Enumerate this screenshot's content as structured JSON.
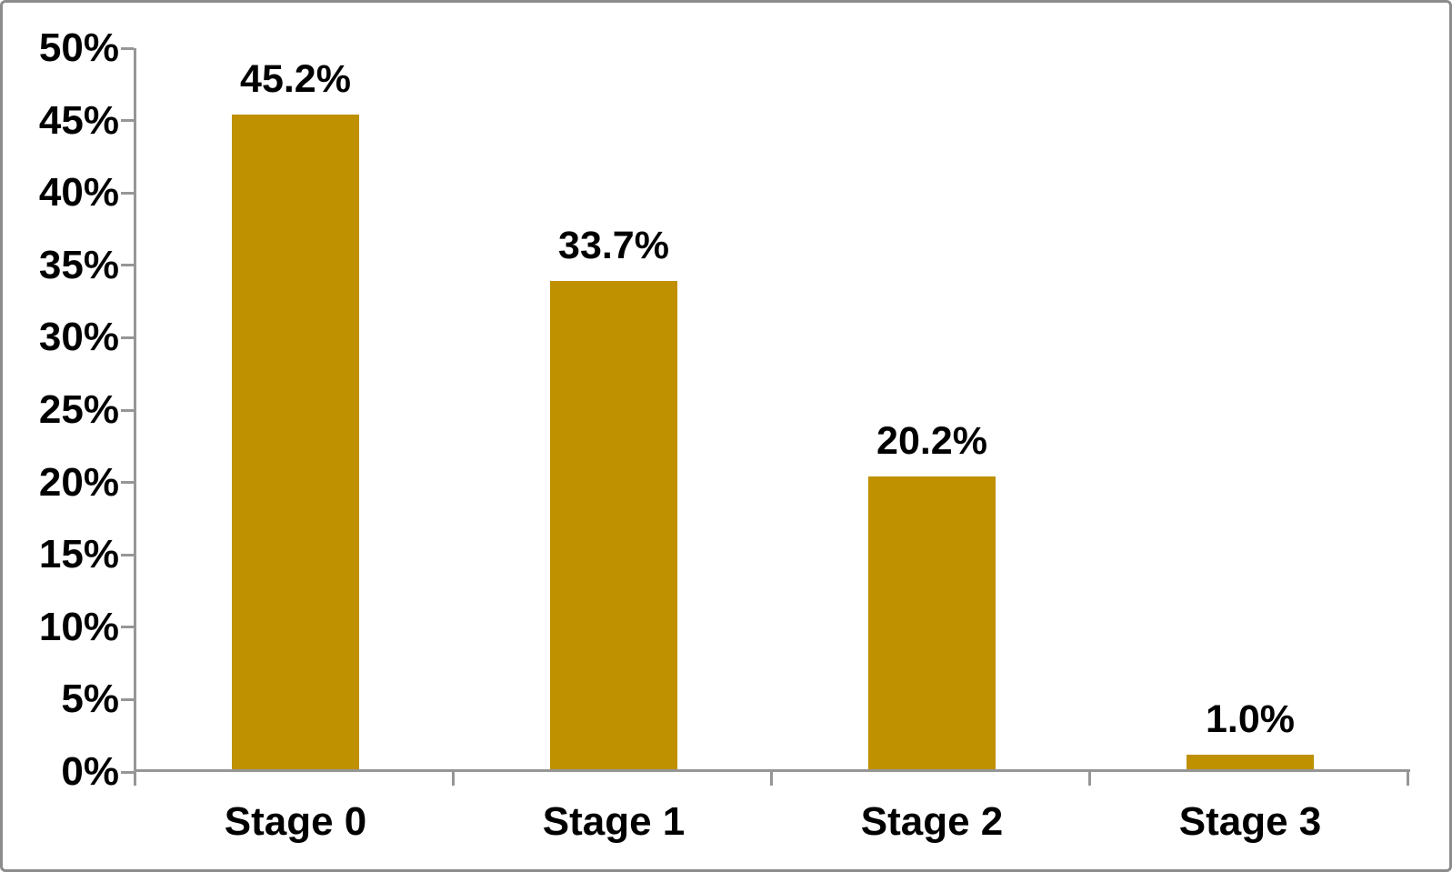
{
  "chart_data": {
    "type": "bar",
    "title": "",
    "xlabel": "",
    "ylabel": "",
    "categories": [
      "Stage 0",
      "Stage 1",
      "Stage 2",
      "Stage 3"
    ],
    "values": [
      45.2,
      33.7,
      20.2,
      1.0
    ],
    "data_labels": [
      "45.2%",
      "33.7%",
      "20.2%",
      "1.0%"
    ],
    "ylim": [
      0,
      50
    ],
    "y_tick_step": 5,
    "y_tick_labels": [
      "0%",
      "5%",
      "10%",
      "15%",
      "20%",
      "25%",
      "30%",
      "35%",
      "40%",
      "45%",
      "50%"
    ],
    "grid": false,
    "legend": "none",
    "colors": {
      "bar": "#BF9000",
      "axis_line": "#969696",
      "text": "#000000",
      "frame_border": "#8C8C8C",
      "background": "#FFFFFF"
    }
  }
}
